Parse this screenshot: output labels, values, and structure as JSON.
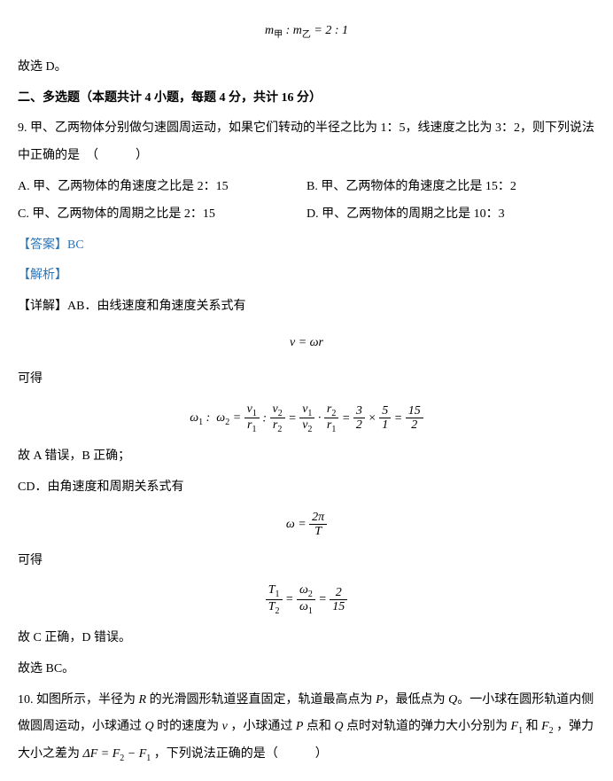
{
  "eq_top": "m_甲 : m_乙 = 2 : 1",
  "line_choose_d": "故选 D。",
  "section_title": "二、多选题（本题共计 4 小题，每题 4 分，共计 16 分）",
  "q9": {
    "stem": "9. 甲、乙两物体分别做匀速圆周运动，如果它们转动的半径之比为 1：5，线速度之比为 3：2，则下列说法中正确的是　（　　　）",
    "optA": "A. 甲、乙两物体的角速度之比是 2：15",
    "optB": "B. 甲、乙两物体的角速度之比是 15：2",
    "optC": "C. 甲、乙两物体的周期之比是 2：15",
    "optD": "D. 甲、乙两物体的周期之比是 10：3",
    "answer_label": "【答案】",
    "answer_value": "BC",
    "analysis_label": "【解析】",
    "detail_label": "【详解】",
    "detail_ab": "AB．由线速度和角速度关系式有",
    "eq_vwr": "v = ω r",
    "kede1": "可得",
    "eq_omega_colors": {
      "text_color": "#000000"
    },
    "conclusion_ab": "故 A 错误，B 正确；",
    "detail_cd": "CD．由角速度和周期关系式有",
    "kede2": "可得",
    "conclusion_cd": "故 C 正确，D 错误。",
    "final": "故选 BC。"
  },
  "q10": {
    "stem_part": "10. 如图所示，半径为 R 的光滑圆形轨道竖直固定，轨道最高点为 P，最低点为 Q。一小球在圆形轨道内侧做圆周运动，小球通过 Q 时的速度为 v ，小球通过 P 点和 Q 点时对轨道的弹力大小分别为 F₁ 和 F₂ ，弹力大小之差为 ΔF = F₂ − F₁ ，下列说法正确的是（　　　）"
  }
}
